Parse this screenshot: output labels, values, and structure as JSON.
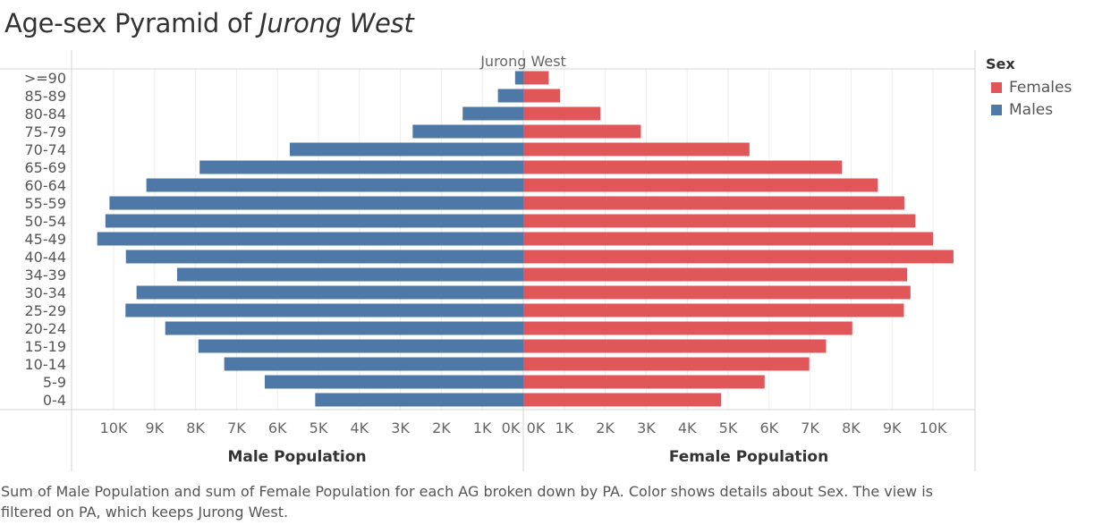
{
  "title": {
    "prefix": "Age-sex Pyramid of ",
    "place": "Jurong West"
  },
  "legend": {
    "title": "Sex",
    "items": [
      {
        "label": "Females",
        "color": "#e15759"
      },
      {
        "label": "Males",
        "color": "#4e79a7"
      }
    ]
  },
  "caption": "Sum of Male Population and sum of Female Population for each AG broken down by PA.  Color shows details about Sex. The view is filtered on PA, which keeps Jurong West.",
  "chart_data": {
    "type": "bar",
    "panel_header": "Jurong West",
    "categories": [
      ">=90",
      "85-89",
      "80-84",
      "75-79",
      "70-74",
      "65-69",
      "60-64",
      "55-59",
      "50-54",
      "45-49",
      "40-44",
      "34-39",
      "30-34",
      "25-29",
      "20-24",
      "15-19",
      "10-14",
      "5-9",
      "0-4"
    ],
    "series": [
      {
        "name": "Males",
        "color": "#4e79a7",
        "values": [
          200,
          620,
          1480,
          2700,
          5700,
          7900,
          9200,
          10100,
          10200,
          10400,
          9700,
          8450,
          9440,
          9710,
          8740,
          7930,
          7300,
          6310,
          5080
        ]
      },
      {
        "name": "Females",
        "color": "#e15759",
        "values": [
          620,
          900,
          1880,
          2870,
          5520,
          7780,
          8650,
          9300,
          9570,
          10000,
          10500,
          9370,
          9450,
          9290,
          8030,
          7390,
          6980,
          5890,
          4830
        ]
      }
    ],
    "left_axis": {
      "label": "Male Population",
      "ticks": [
        "10K",
        "9K",
        "8K",
        "7K",
        "6K",
        "5K",
        "4K",
        "3K",
        "2K",
        "1K",
        "0K"
      ],
      "tick_values": [
        10000,
        9000,
        8000,
        7000,
        6000,
        5000,
        4000,
        3000,
        2000,
        1000,
        0
      ],
      "reversed": true
    },
    "right_axis": {
      "label": "Female Population",
      "ticks": [
        "0K",
        "1K",
        "2K",
        "3K",
        "4K",
        "5K",
        "6K",
        "7K",
        "8K",
        "9K",
        "10K"
      ],
      "tick_values": [
        0,
        1000,
        2000,
        3000,
        4000,
        5000,
        6000,
        7000,
        8000,
        9000,
        10000
      ]
    },
    "xlim": [
      0,
      11000
    ],
    "grid": true
  }
}
